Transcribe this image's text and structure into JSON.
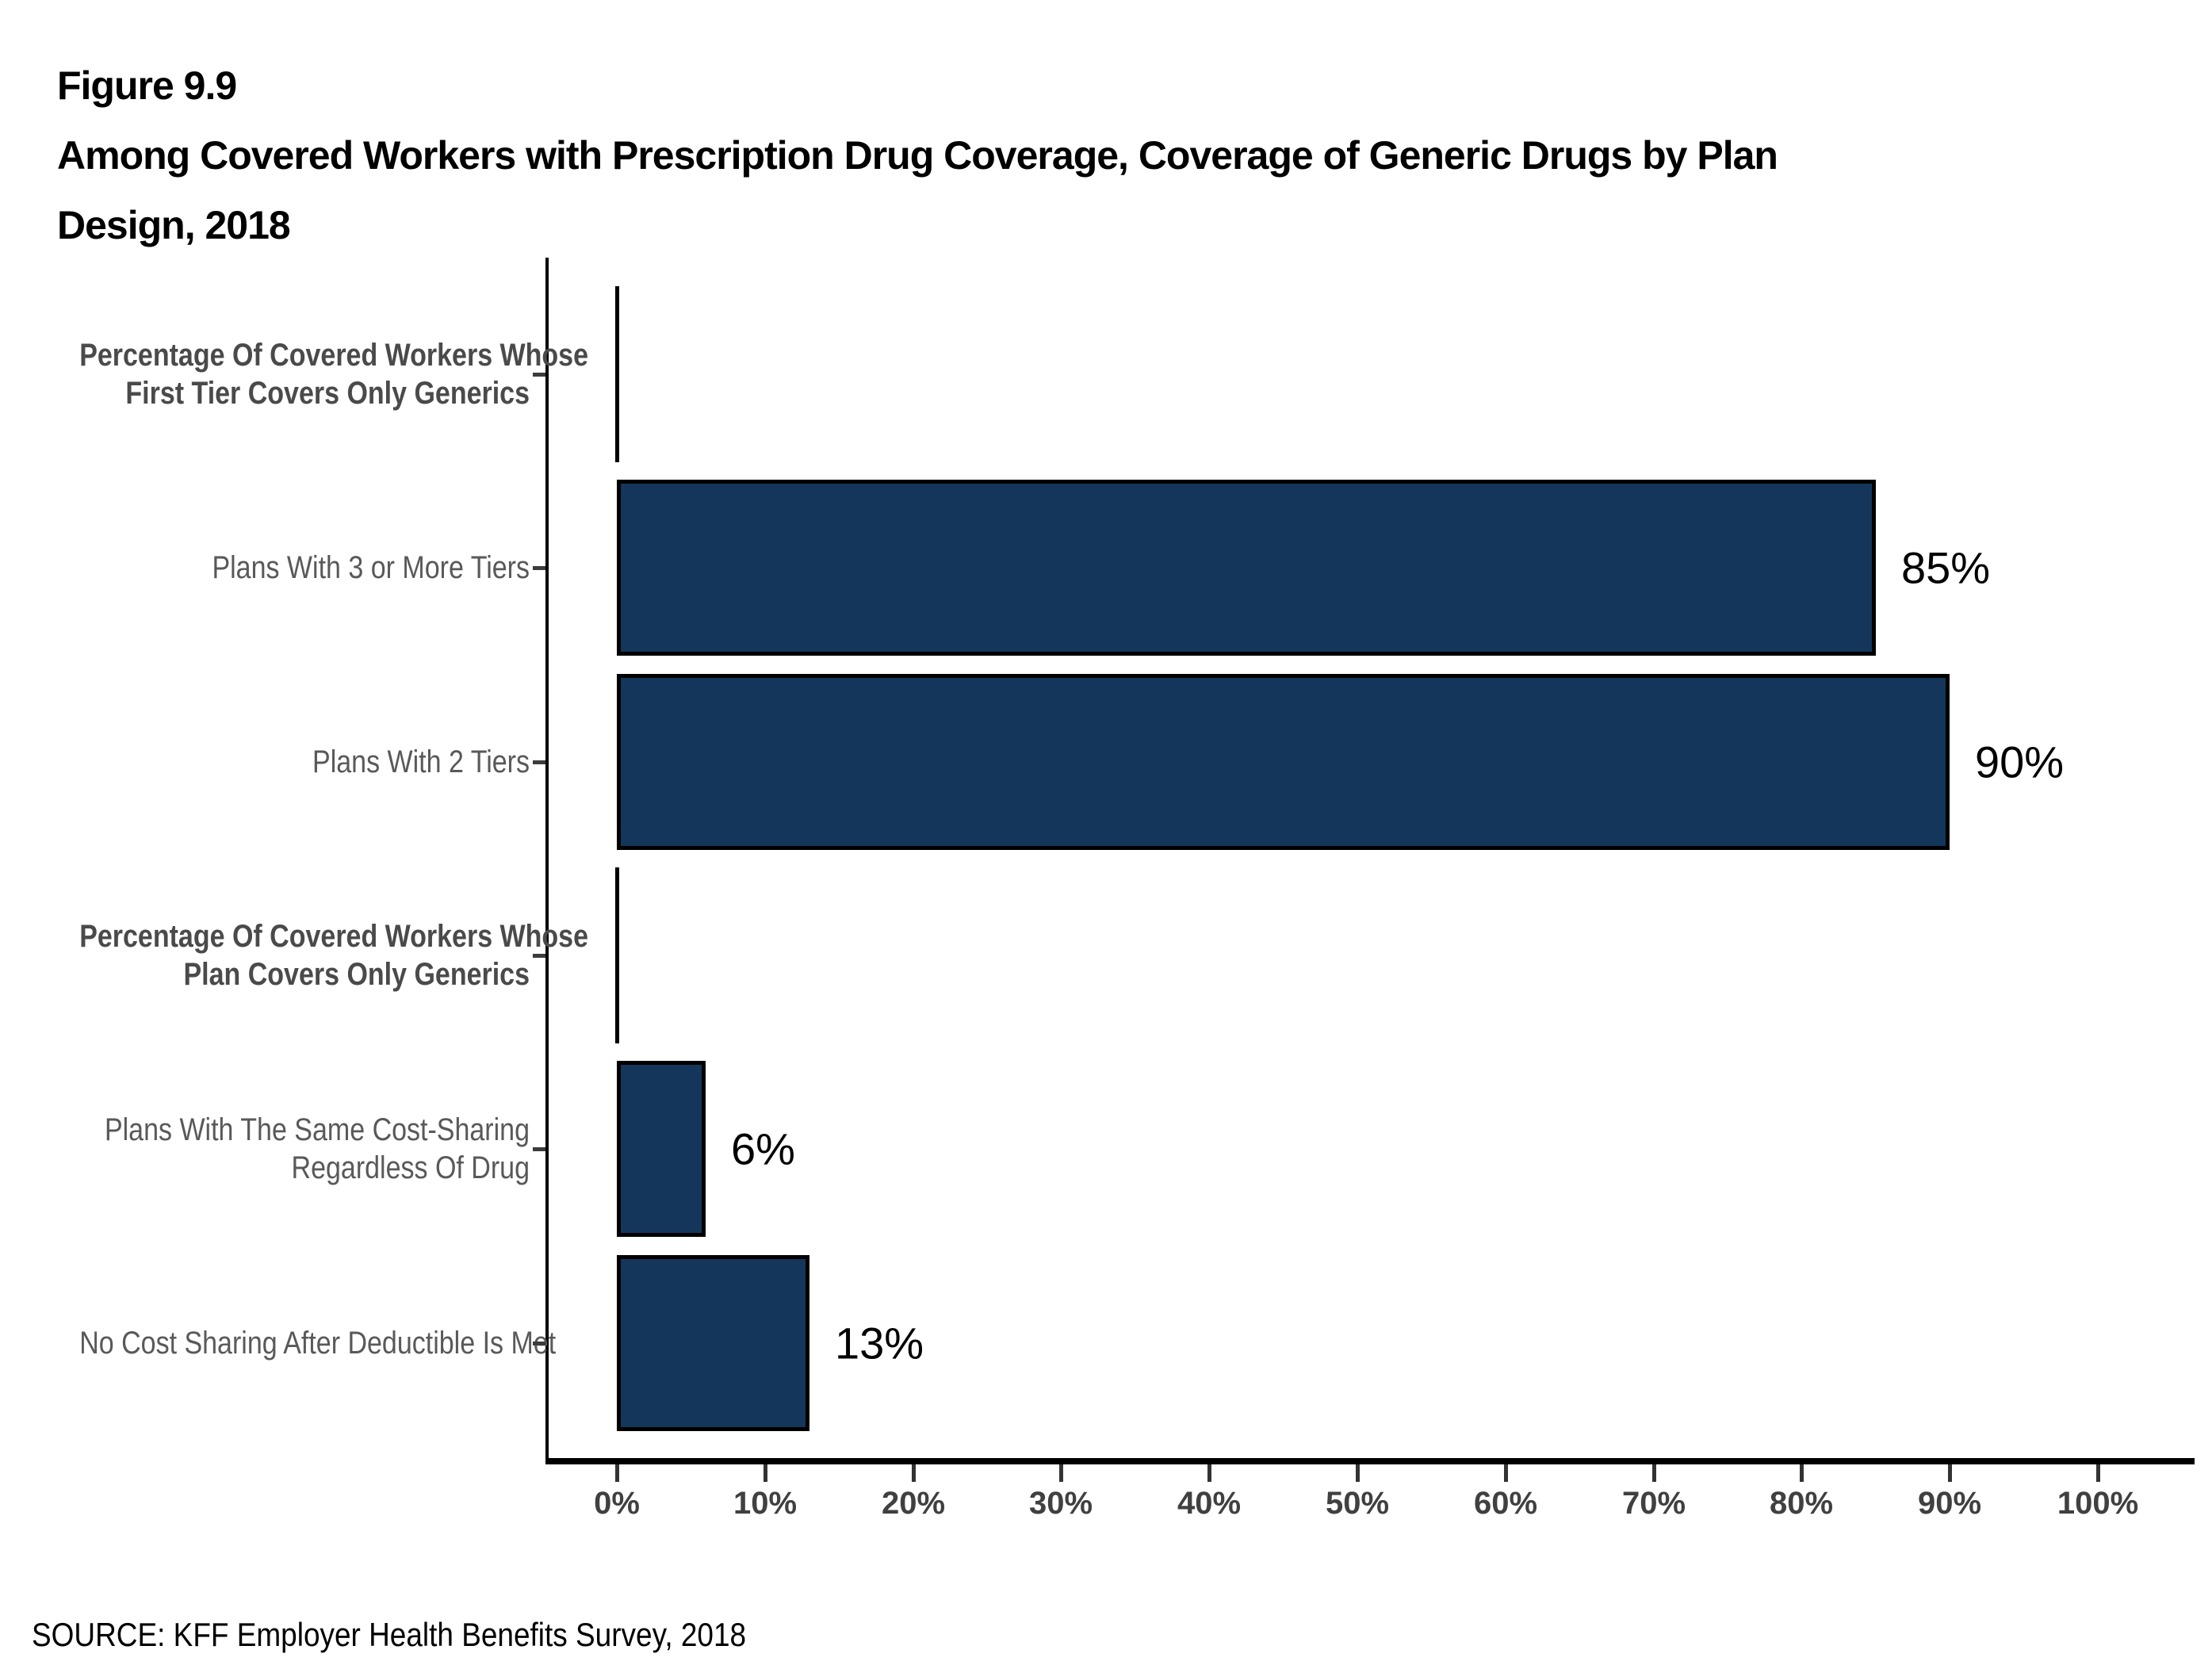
{
  "header": {
    "figure_label": "Figure 9.9",
    "title_line_1": "Among Covered Workers with Prescription Drug Coverage, Coverage of Generic Drugs by Plan",
    "title_line_2": "Design, 2018"
  },
  "chart_data": {
    "type": "bar",
    "orientation": "horizontal",
    "title": "Among Covered Workers with Prescription Drug Coverage, Coverage of Generic Drugs by Plan Design, 2018",
    "categories": [
      {
        "lines": [
          "Percentage Of Covered Workers Whose",
          "First Tier Covers Only Generics"
        ],
        "bold": true
      },
      {
        "lines": [
          "Plans With 3 or More Tiers"
        ],
        "bold": false
      },
      {
        "lines": [
          "Plans With 2 Tiers"
        ],
        "bold": false
      },
      {
        "lines": [
          "Percentage Of Covered Workers Whose",
          "Plan Covers Only Generics"
        ],
        "bold": true
      },
      {
        "lines": [
          "Plans With The Same Cost-Sharing",
          "Regardless Of Drug"
        ],
        "bold": false
      },
      {
        "lines": [
          "No Cost Sharing After Deductible Is Met"
        ],
        "bold": false
      }
    ],
    "values": [
      0,
      85,
      90,
      0,
      6,
      13
    ],
    "value_labels": [
      "",
      "85%",
      "90%",
      "",
      "6%",
      "13%"
    ],
    "x_axis": {
      "min": 0,
      "max": 100,
      "tick_step": 10,
      "tick_labels": [
        "0%",
        "10%",
        "20%",
        "30%",
        "40%",
        "50%",
        "60%",
        "70%",
        "80%",
        "90%",
        "100%"
      ]
    },
    "grid": false,
    "legend": false,
    "colors": {
      "bar_fill": "#14365A",
      "bar_border": "#000000",
      "axis": "#000000",
      "tick_label": "#404040",
      "category_label": "#595959",
      "category_label_bold": "#4a4a4a"
    }
  },
  "source": "SOURCE: KFF Employer Health Benefits Survey, 2018"
}
